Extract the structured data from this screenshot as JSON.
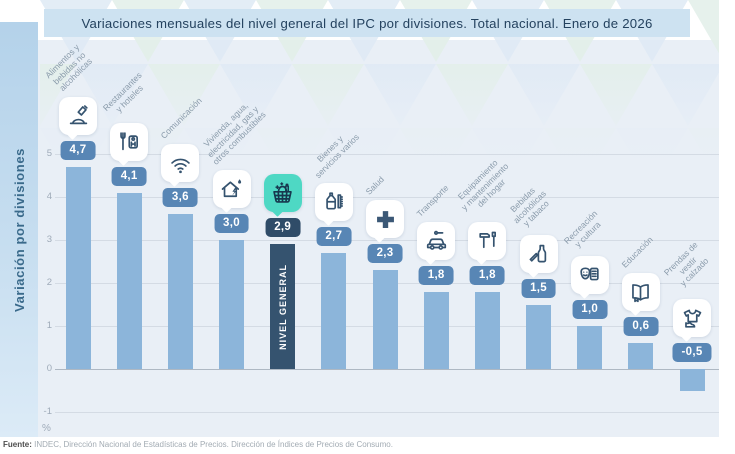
{
  "title": "Variaciones mensuales del nivel general del IPC por divisiones. Total nacional. Enero de 2026",
  "sidebar": {
    "label": "Variación por divisiones"
  },
  "footer": {
    "source_label": "Fuente:",
    "source_text": " INDEC, Dirección Nacional de Estadísticas de Precios. Dirección de Índices de Precios de Consumo."
  },
  "colors": {
    "bar": "#8cb5da",
    "bar_general": "#35536f",
    "badge": "#5886b5",
    "badge_general": "#2f4c68",
    "tile_general": "#4ed8c4",
    "plot_bg": "#e9eff6",
    "title_bg": "#cde2f1",
    "sidebar_bg": "#c7def0"
  },
  "chart_data": {
    "type": "bar",
    "title": "Variaciones mensuales del nivel general del IPC por divisiones. Total nacional. Enero de 2026",
    "ylabel": "Variación por divisiones",
    "unit": "%",
    "ylim": [
      -1,
      5
    ],
    "yticks": [
      "5",
      "4",
      "3",
      "2",
      "1",
      "0",
      "-1"
    ],
    "grid": true,
    "highlight_label": "NIVEL GENERAL",
    "divisions": [
      {
        "name": "Alimentos y bebidas no alcohólicas",
        "label_lines": [
          "Alimentos y",
          "bebidas no",
          "alcohólicas"
        ],
        "value": 4.7,
        "value_label": "4,7",
        "icon": "food-icon",
        "general": false
      },
      {
        "name": "Restaurantes y hoteles",
        "label_lines": [
          "Restaurantes",
          "y hoteles"
        ],
        "value": 4.1,
        "value_label": "4,1",
        "icon": "restaurant-hotel-icon",
        "general": false
      },
      {
        "name": "Comunicación",
        "label_lines": [
          "Comunicación"
        ],
        "value": 3.6,
        "value_label": "3,6",
        "icon": "wifi-icon",
        "general": false
      },
      {
        "name": "Vivienda, agua, electricidad, gas y otros combustibles",
        "label_lines": [
          "Vivienda, agua,",
          "electricidad, gas y",
          "otros combustibles"
        ],
        "value": 3.0,
        "value_label": "3,0",
        "icon": "housing-icon",
        "general": false
      },
      {
        "name": "Nivel general",
        "label_lines": [],
        "value": 2.9,
        "value_label": "2,9",
        "icon": "basket-icon",
        "general": true
      },
      {
        "name": "Bienes y servicios varios",
        "label_lines": [
          "Bienes y",
          "servicios varios"
        ],
        "value": 2.7,
        "value_label": "2,7",
        "icon": "goods-icon",
        "general": false
      },
      {
        "name": "Salud",
        "label_lines": [
          "Salud"
        ],
        "value": 2.3,
        "value_label": "2,3",
        "icon": "health-cross-icon",
        "general": false
      },
      {
        "name": "Transporte",
        "label_lines": [
          "Transporte"
        ],
        "value": 1.8,
        "value_label": "1,8",
        "icon": "car-icon",
        "general": false
      },
      {
        "name": "Equipamiento y mantenimiento del hogar",
        "label_lines": [
          "Equipamiento",
          "y mantenimiento",
          "del hogar"
        ],
        "value": 1.8,
        "value_label": "1,8",
        "icon": "tools-icon",
        "general": false
      },
      {
        "name": "Bebidas alcohólicas y tabaco",
        "label_lines": [
          "Bebidas",
          "alcohólicas",
          "y tabaco"
        ],
        "value": 1.5,
        "value_label": "1,5",
        "icon": "bottle-cigarette-icon",
        "general": false
      },
      {
        "name": "Recreación y cultura",
        "label_lines": [
          "Recreación",
          "y cultura"
        ],
        "value": 1.0,
        "value_label": "1,0",
        "icon": "masks-icon",
        "general": false
      },
      {
        "name": "Educación",
        "label_lines": [
          "Educación"
        ],
        "value": 0.6,
        "value_label": "0,6",
        "icon": "book-icon",
        "general": false
      },
      {
        "name": "Prendas de vestir y calzado",
        "label_lines": [
          "Prendas de vestir",
          "y calzado"
        ],
        "value": -0.5,
        "value_label": "-0,5",
        "icon": "clothing-icon",
        "general": false
      }
    ]
  }
}
